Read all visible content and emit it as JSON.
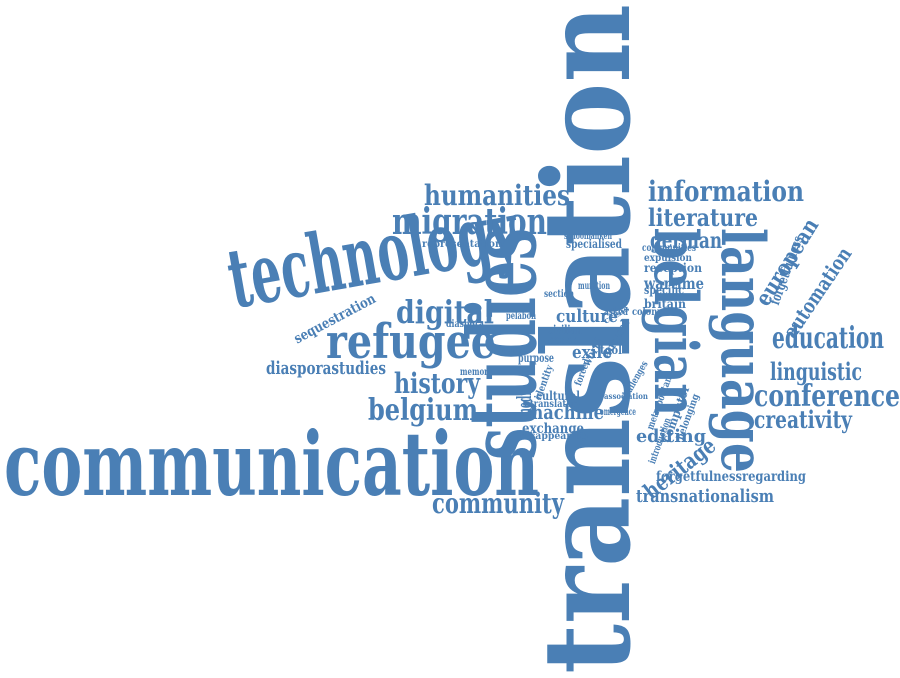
{
  "colors": {
    "accent": "#4a7fb5",
    "background": "#ffffff"
  },
  "words": [
    "translation",
    "communication",
    "technology",
    "refugee",
    "studies",
    "belgian",
    "language",
    "migration",
    "humanities",
    "information",
    "literature",
    "german",
    "digital",
    "history",
    "belgium",
    "education",
    "european",
    "automation",
    "linguistic",
    "conference",
    "creativity",
    "community",
    "sequestration",
    "diasporastudies",
    "machine",
    "culture",
    "heritage",
    "editing",
    "transnationalism",
    "forgetfulnessregarding",
    "forgetfulness",
    "exile",
    "media",
    "wartime",
    "reception",
    "representation",
    "specialised",
    "diaspora",
    "memory",
    "tool",
    "annual",
    "world",
    "computer",
    "belonging",
    "britain",
    "exchange",
    "translator",
    "cultural",
    "disappearing",
    "emergence",
    "expulsion",
    "communities",
    "schoolbanken",
    "section",
    "civilian",
    "sense",
    "specific",
    "colony",
    "purpose",
    "identity",
    "forced",
    "introduction",
    "metropolitan",
    "challenges",
    "munition",
    "pelabon",
    "article",
    "asked",
    "crisis",
    "association"
  ]
}
